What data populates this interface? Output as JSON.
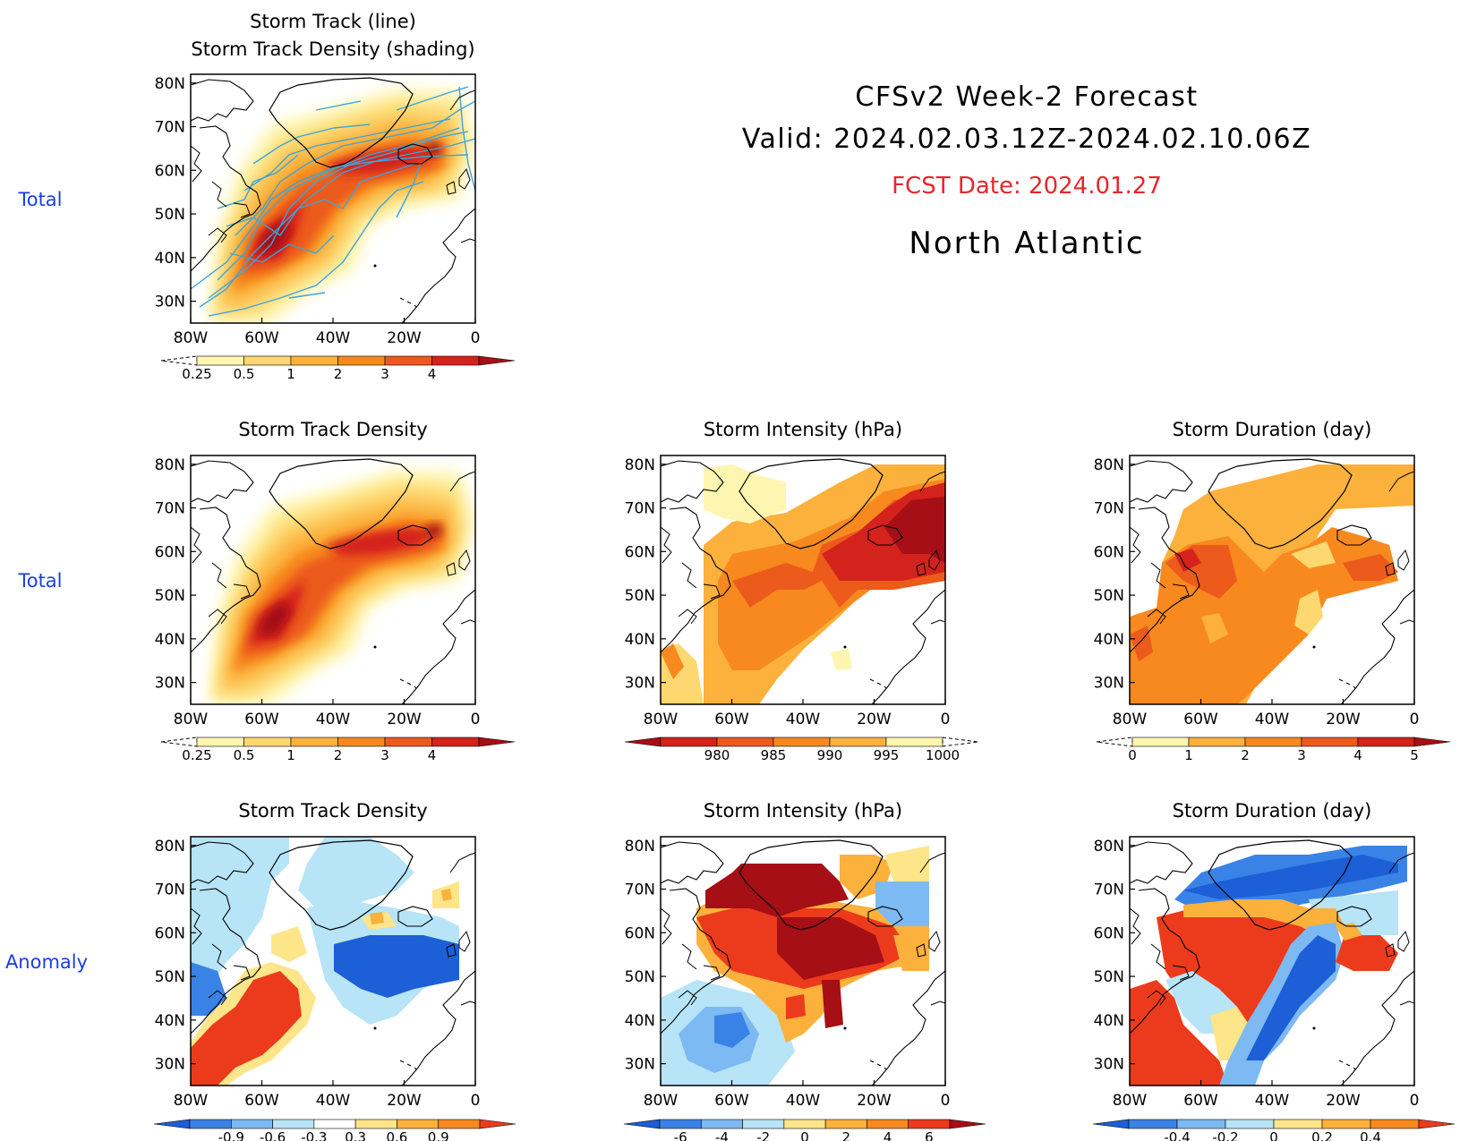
{
  "header": {
    "model_line": "CFSv2 Week-2 Forecast",
    "valid_line": "Valid: 2024.02.03.12Z-2024.02.10.06Z",
    "fcst_line": "FCST Date: 2024.01.27",
    "region": "North Atlantic",
    "fcst_color": "#e8262c"
  },
  "row_labels": [
    "Total",
    "Total",
    "Anomaly"
  ],
  "row_label_color": "#1a3fe0",
  "axes": {
    "lat_labels": [
      "80N",
      "70N",
      "60N",
      "50N",
      "40N",
      "30N"
    ],
    "lon_labels": [
      "80W",
      "60W",
      "40W",
      "20W",
      "0"
    ]
  },
  "panels": [
    {
      "id": "track-total",
      "title1": "Storm Track (line)",
      "title2": "Storm Track Density (shading)",
      "colorbar": 0
    },
    {
      "id": "density-total",
      "title1": "Storm Track Density",
      "colorbar": 0
    },
    {
      "id": "intensity-total",
      "title1": "Storm Intensity (hPa)",
      "colorbar": 1
    },
    {
      "id": "duration-total",
      "title1": "Storm Duration (day)",
      "colorbar": 2
    },
    {
      "id": "density-anomaly",
      "title1": "Storm Track Density",
      "colorbar": 3
    },
    {
      "id": "intensity-anomaly",
      "title1": "Storm Intensity (hPa)",
      "colorbar": 4
    },
    {
      "id": "duration-anomaly",
      "title1": "Storm Duration (day)",
      "colorbar": 5
    }
  ],
  "colorbars": [
    {
      "labels": [
        "0.25",
        "0.5",
        "1",
        "2",
        "3",
        "4"
      ],
      "colors": [
        "#fef5b0",
        "#fdd870",
        "#fbb13c",
        "#f7891e",
        "#ec5a1c",
        "#d4221c",
        "#a50f15"
      ]
    },
    {
      "labels": [
        "980",
        "985",
        "990",
        "995",
        "1000"
      ],
      "colors": [
        "#a50f15",
        "#d4221c",
        "#ec5a1c",
        "#f7891e",
        "#fbb13c",
        "#fef5b0"
      ]
    },
    {
      "labels": [
        "0",
        "1",
        "2",
        "3",
        "4",
        "5"
      ],
      "colors": [
        "#fef5b0",
        "#fbb13c",
        "#f7891e",
        "#ec5a1c",
        "#d4221c",
        "#a50f15"
      ]
    },
    {
      "labels": [
        "-0.9",
        "-0.6",
        "-0.3",
        "0.3",
        "0.6",
        "0.9"
      ],
      "colors": [
        "#1c5fd6",
        "#3a83e6",
        "#7db9f2",
        "#b7e4f6",
        "#ffffff",
        "#fde58a",
        "#fbb13c",
        "#f7891e",
        "#ec3b1c"
      ]
    },
    {
      "labels": [
        "-6",
        "-4",
        "-2",
        "0",
        "2",
        "4",
        "6"
      ],
      "colors": [
        "#1c5fd6",
        "#3a83e6",
        "#7db9f2",
        "#b7e4f6",
        "#fde58a",
        "#fbb13c",
        "#f7891e",
        "#ec3b1c",
        "#a50f15"
      ]
    },
    {
      "labels": [
        "-0.4",
        "-0.2",
        "0",
        "0.2",
        "0.4"
      ],
      "colors": [
        "#1c5fd6",
        "#3a83e6",
        "#7db9f2",
        "#b7e4f6",
        "#fde58a",
        "#fbb13c",
        "#f7891e",
        "#ec3b1c"
      ]
    }
  ],
  "colors": {
    "track_line": "#3ea4d8",
    "land_outline": "#000000"
  }
}
